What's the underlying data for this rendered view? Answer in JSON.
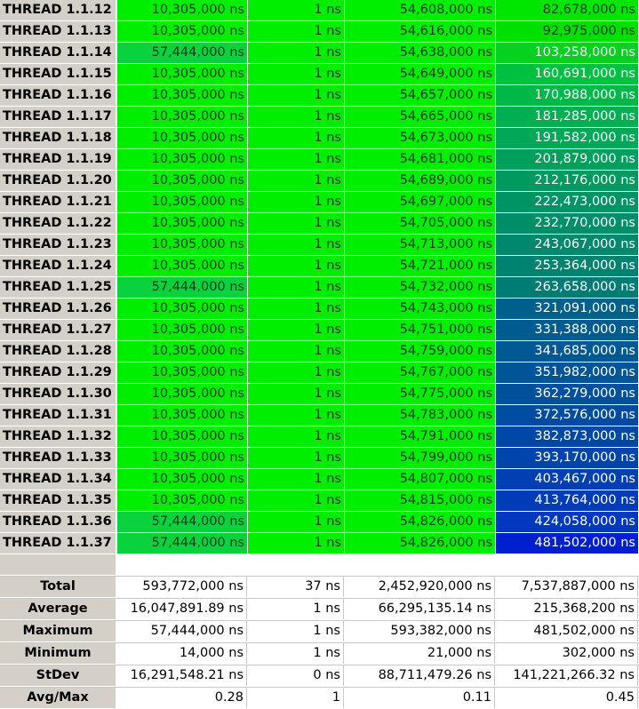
{
  "colors": {
    "header_bg": "#d4d0c8",
    "col_bright_green": "#00ee00",
    "col_mid_green": "#11cc33"
  },
  "thread_rows": [
    {
      "name": "THREAD 1.1.12",
      "c1": "10,305,000 ns",
      "c2": "1 ns",
      "c3": "54,608,000 ns",
      "c4": "82,678,000 ns",
      "c1_bg": "#00ee00",
      "c4_bg": "#00e600",
      "c4_fg": "#0a3a0a"
    },
    {
      "name": "THREAD 1.1.13",
      "c1": "10,305,000 ns",
      "c2": "1 ns",
      "c3": "54,616,000 ns",
      "c4": "92,975,000 ns",
      "c1_bg": "#00ee00",
      "c4_bg": "#00e000",
      "c4_fg": "#0a3a0a"
    },
    {
      "name": "THREAD 1.1.14",
      "c1": "57,444,000 ns",
      "c2": "1 ns",
      "c3": "54,638,000 ns",
      "c4": "103,258,000 ns",
      "c1_bg": "#0ad23c",
      "c4_bg": "#06d020",
      "c4_fg": "#ffffff"
    },
    {
      "name": "THREAD 1.1.15",
      "c1": "10,305,000 ns",
      "c2": "1 ns",
      "c3": "54,649,000 ns",
      "c4": "160,691,000 ns",
      "c1_bg": "#00ee00",
      "c4_bg": "#00c040",
      "c4_fg": "#ffffff"
    },
    {
      "name": "THREAD 1.1.16",
      "c1": "10,305,000 ns",
      "c2": "1 ns",
      "c3": "54,657,000 ns",
      "c4": "170,988,000 ns",
      "c1_bg": "#00ee00",
      "c4_bg": "#00b848",
      "c4_fg": "#ffffff"
    },
    {
      "name": "THREAD 1.1.17",
      "c1": "10,305,000 ns",
      "c2": "1 ns",
      "c3": "54,665,000 ns",
      "c4": "181,285,000 ns",
      "c1_bg": "#00ee00",
      "c4_bg": "#00b050",
      "c4_fg": "#ffffff"
    },
    {
      "name": "THREAD 1.1.18",
      "c1": "10,305,000 ns",
      "c2": "1 ns",
      "c3": "54,673,000 ns",
      "c4": "191,582,000 ns",
      "c1_bg": "#00ee00",
      "c4_bg": "#00a858",
      "c4_fg": "#ffffff"
    },
    {
      "name": "THREAD 1.1.19",
      "c1": "10,305,000 ns",
      "c2": "1 ns",
      "c3": "54,681,000 ns",
      "c4": "201,879,000 ns",
      "c1_bg": "#00ee00",
      "c4_bg": "#00a05c",
      "c4_fg": "#ffffff"
    },
    {
      "name": "THREAD 1.1.20",
      "c1": "10,305,000 ns",
      "c2": "1 ns",
      "c3": "54,689,000 ns",
      "c4": "212,176,000 ns",
      "c1_bg": "#00ee00",
      "c4_bg": "#009a60",
      "c4_fg": "#ffffff"
    },
    {
      "name": "THREAD 1.1.21",
      "c1": "10,305,000 ns",
      "c2": "1 ns",
      "c3": "54,697,000 ns",
      "c4": "222,473,000 ns",
      "c1_bg": "#00ee00",
      "c4_bg": "#009464",
      "c4_fg": "#ffffff"
    },
    {
      "name": "THREAD 1.1.22",
      "c1": "10,305,000 ns",
      "c2": "1 ns",
      "c3": "54,705,000 ns",
      "c4": "232,770,000 ns",
      "c1_bg": "#00ee00",
      "c4_bg": "#008e68",
      "c4_fg": "#ffffff"
    },
    {
      "name": "THREAD 1.1.23",
      "c1": "10,305,000 ns",
      "c2": "1 ns",
      "c3": "54,713,000 ns",
      "c4": "243,067,000 ns",
      "c1_bg": "#00ee00",
      "c4_bg": "#00886c",
      "c4_fg": "#ffffff"
    },
    {
      "name": "THREAD 1.1.24",
      "c1": "10,305,000 ns",
      "c2": "1 ns",
      "c3": "54,721,000 ns",
      "c4": "253,364,000 ns",
      "c1_bg": "#00ee00",
      "c4_bg": "#008270",
      "c4_fg": "#ffffff"
    },
    {
      "name": "THREAD 1.1.25",
      "c1": "57,444,000 ns",
      "c2": "1 ns",
      "c3": "54,732,000 ns",
      "c4": "263,658,000 ns",
      "c1_bg": "#0ad23c",
      "c4_bg": "#007c74",
      "c4_fg": "#ffffff"
    },
    {
      "name": "THREAD 1.1.26",
      "c1": "10,305,000 ns",
      "c2": "1 ns",
      "c3": "54,743,000 ns",
      "c4": "321,091,000 ns",
      "c1_bg": "#00ee00",
      "c4_bg": "#00608c",
      "c4_fg": "#ffffff"
    },
    {
      "name": "THREAD 1.1.27",
      "c1": "10,305,000 ns",
      "c2": "1 ns",
      "c3": "54,751,000 ns",
      "c4": "331,388,000 ns",
      "c1_bg": "#00ee00",
      "c4_bg": "#005c90",
      "c4_fg": "#ffffff"
    },
    {
      "name": "THREAD 1.1.28",
      "c1": "10,305,000 ns",
      "c2": "1 ns",
      "c3": "54,759,000 ns",
      "c4": "341,685,000 ns",
      "c1_bg": "#00ee00",
      "c4_bg": "#005894",
      "c4_fg": "#ffffff"
    },
    {
      "name": "THREAD 1.1.29",
      "c1": "10,305,000 ns",
      "c2": "1 ns",
      "c3": "54,767,000 ns",
      "c4": "351,982,000 ns",
      "c1_bg": "#00ee00",
      "c4_bg": "#005498",
      "c4_fg": "#ffffff"
    },
    {
      "name": "THREAD 1.1.30",
      "c1": "10,305,000 ns",
      "c2": "1 ns",
      "c3": "54,775,000 ns",
      "c4": "362,279,000 ns",
      "c1_bg": "#00ee00",
      "c4_bg": "#00509c",
      "c4_fg": "#ffffff"
    },
    {
      "name": "THREAD 1.1.31",
      "c1": "10,305,000 ns",
      "c2": "1 ns",
      "c3": "54,783,000 ns",
      "c4": "372,576,000 ns",
      "c1_bg": "#00ee00",
      "c4_bg": "#004ca0",
      "c4_fg": "#ffffff"
    },
    {
      "name": "THREAD 1.1.32",
      "c1": "10,305,000 ns",
      "c2": "1 ns",
      "c3": "54,791,000 ns",
      "c4": "382,873,000 ns",
      "c1_bg": "#00ee00",
      "c4_bg": "#0048a6",
      "c4_fg": "#ffffff"
    },
    {
      "name": "THREAD 1.1.33",
      "c1": "10,305,000 ns",
      "c2": "1 ns",
      "c3": "54,799,000 ns",
      "c4": "393,170,000 ns",
      "c1_bg": "#00ee00",
      "c4_bg": "#0044ac",
      "c4_fg": "#ffffff"
    },
    {
      "name": "THREAD 1.1.34",
      "c1": "10,305,000 ns",
      "c2": "1 ns",
      "c3": "54,807,000 ns",
      "c4": "403,467,000 ns",
      "c1_bg": "#00ee00",
      "c4_bg": "#0040b2",
      "c4_fg": "#ffffff"
    },
    {
      "name": "THREAD 1.1.35",
      "c1": "10,305,000 ns",
      "c2": "1 ns",
      "c3": "54,815,000 ns",
      "c4": "413,764,000 ns",
      "c1_bg": "#00ee00",
      "c4_bg": "#003cb8",
      "c4_fg": "#ffffff"
    },
    {
      "name": "THREAD 1.1.36",
      "c1": "57,444,000 ns",
      "c2": "1 ns",
      "c3": "54,826,000 ns",
      "c4": "424,058,000 ns",
      "c1_bg": "#0ad23c",
      "c4_bg": "#0038be",
      "c4_fg": "#ffffff"
    },
    {
      "name": "THREAD 1.1.37",
      "c1": "57,444,000 ns",
      "c2": "1 ns",
      "c3": "54,826,000 ns",
      "c4": "481,502,000 ns",
      "c1_bg": "#0ad23c",
      "c4_bg": "#0020d0",
      "c4_fg": "#ffffff"
    }
  ],
  "summary_rows": [
    {
      "name": "Total",
      "c1": "593,772,000 ns",
      "c2": "37 ns",
      "c3": "2,452,920,000 ns",
      "c4": "7,537,887,000 ns"
    },
    {
      "name": "Average",
      "c1": "16,047,891.89 ns",
      "c2": "1 ns",
      "c3": "66,295,135.14 ns",
      "c4": "215,368,200 ns"
    },
    {
      "name": "Maximum",
      "c1": "57,444,000 ns",
      "c2": "1 ns",
      "c3": "593,382,000 ns",
      "c4": "481,502,000 ns"
    },
    {
      "name": "Minimum",
      "c1": "14,000 ns",
      "c2": "1 ns",
      "c3": "21,000 ns",
      "c4": "302,000 ns"
    },
    {
      "name": "StDev",
      "c1": "16,291,548.21 ns",
      "c2": "0 ns",
      "c3": "88,711,479.26 ns",
      "c4": "141,221,266.32 ns"
    },
    {
      "name": "Avg/Max",
      "c1": "0.28",
      "c2": "1",
      "c3": "0.11",
      "c4": "0.45"
    }
  ]
}
